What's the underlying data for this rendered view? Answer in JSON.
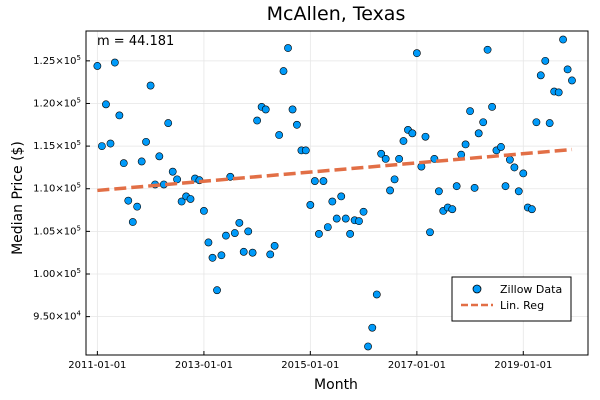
{
  "chart_data": {
    "type": "scatter",
    "title": "McAllen, Texas",
    "xlabel": "Month",
    "ylabel": "Median Price ($)",
    "annotation": "m = 44.181",
    "grid": true,
    "legend_position": "bottom-right",
    "xlim": [
      "2010-10-15",
      "2020-03-20"
    ],
    "ylim": [
      90500,
      128500
    ],
    "x_ticks": [
      {
        "date": "2011-01-01",
        "label": "2011-01-01"
      },
      {
        "date": "2013-01-01",
        "label": "2013-01-01"
      },
      {
        "date": "2015-01-01",
        "label": "2015-01-01"
      },
      {
        "date": "2017-01-01",
        "label": "2017-01-01"
      },
      {
        "date": "2019-01-01",
        "label": "2019-01-01"
      }
    ],
    "y_ticks": [
      {
        "value": 95000,
        "mant": "9.50",
        "exp": "4"
      },
      {
        "value": 100000,
        "mant": "1.00",
        "exp": "5"
      },
      {
        "value": 105000,
        "mant": "1.05",
        "exp": "5"
      },
      {
        "value": 110000,
        "mant": "1.10",
        "exp": "5"
      },
      {
        "value": 115000,
        "mant": "1.15",
        "exp": "5"
      },
      {
        "value": 120000,
        "mant": "1.20",
        "exp": "5"
      },
      {
        "value": 125000,
        "mant": "1.25",
        "exp": "5"
      }
    ],
    "series": [
      {
        "name": "Zillow Data",
        "kind": "scatter",
        "color": "#009af9",
        "points": [
          [
            "2011-01-01",
            124400
          ],
          [
            "2011-02-01",
            115000
          ],
          [
            "2011-03-01",
            119900
          ],
          [
            "2011-04-01",
            115300
          ],
          [
            "2011-05-01",
            124800
          ],
          [
            "2011-06-01",
            118600
          ],
          [
            "2011-07-01",
            113000
          ],
          [
            "2011-08-01",
            108600
          ],
          [
            "2011-09-01",
            106100
          ],
          [
            "2011-10-01",
            107900
          ],
          [
            "2011-11-01",
            113200
          ],
          [
            "2011-12-01",
            115500
          ],
          [
            "2012-01-01",
            122100
          ],
          [
            "2012-02-01",
            110500
          ],
          [
            "2012-03-01",
            113800
          ],
          [
            "2012-04-01",
            110500
          ],
          [
            "2012-05-01",
            117700
          ],
          [
            "2012-06-01",
            112000
          ],
          [
            "2012-07-01",
            111100
          ],
          [
            "2012-08-01",
            108500
          ],
          [
            "2012-09-01",
            109100
          ],
          [
            "2012-10-01",
            108800
          ],
          [
            "2012-11-01",
            111200
          ],
          [
            "2012-12-01",
            111000
          ],
          [
            "2013-01-01",
            107400
          ],
          [
            "2013-02-01",
            103700
          ],
          [
            "2013-03-01",
            101900
          ],
          [
            "2013-04-01",
            98100
          ],
          [
            "2013-05-01",
            102200
          ],
          [
            "2013-06-01",
            104500
          ],
          [
            "2013-07-01",
            111400
          ],
          [
            "2013-08-01",
            104800
          ],
          [
            "2013-09-01",
            106000
          ],
          [
            "2013-10-01",
            102600
          ],
          [
            "2013-11-01",
            105000
          ],
          [
            "2013-12-01",
            102500
          ],
          [
            "2014-01-01",
            118000
          ],
          [
            "2014-02-01",
            119600
          ],
          [
            "2014-03-01",
            119300
          ],
          [
            "2014-04-01",
            102300
          ],
          [
            "2014-05-01",
            103300
          ],
          [
            "2014-06-01",
            116300
          ],
          [
            "2014-07-01",
            123800
          ],
          [
            "2014-08-01",
            126500
          ],
          [
            "2014-09-01",
            119300
          ],
          [
            "2014-10-01",
            117500
          ],
          [
            "2014-11-01",
            114500
          ],
          [
            "2014-12-01",
            114500
          ],
          [
            "2015-01-01",
            108100
          ],
          [
            "2015-02-01",
            110900
          ],
          [
            "2015-03-01",
            104700
          ],
          [
            "2015-04-01",
            110900
          ],
          [
            "2015-05-01",
            105500
          ],
          [
            "2015-06-01",
            108500
          ],
          [
            "2015-07-01",
            106500
          ],
          [
            "2015-08-01",
            109100
          ],
          [
            "2015-09-01",
            106500
          ],
          [
            "2015-10-01",
            104700
          ],
          [
            "2015-11-01",
            106300
          ],
          [
            "2015-12-01",
            106200
          ],
          [
            "2016-01-01",
            107300
          ],
          [
            "2016-02-01",
            91500
          ],
          [
            "2016-03-01",
            93700
          ],
          [
            "2016-04-01",
            97600
          ],
          [
            "2016-05-01",
            114100
          ],
          [
            "2016-06-01",
            113500
          ],
          [
            "2016-07-01",
            109800
          ],
          [
            "2016-08-01",
            111100
          ],
          [
            "2016-09-01",
            113500
          ],
          [
            "2016-10-01",
            115600
          ],
          [
            "2016-11-01",
            116900
          ],
          [
            "2016-12-01",
            116500
          ],
          [
            "2017-01-01",
            125900
          ],
          [
            "2017-02-01",
            112600
          ],
          [
            "2017-03-01",
            116100
          ],
          [
            "2017-04-01",
            104900
          ],
          [
            "2017-05-01",
            113500
          ],
          [
            "2017-06-01",
            109700
          ],
          [
            "2017-07-01",
            107400
          ],
          [
            "2017-08-01",
            107800
          ],
          [
            "2017-09-01",
            107600
          ],
          [
            "2017-10-01",
            110300
          ],
          [
            "2017-11-01",
            114000
          ],
          [
            "2017-12-01",
            115200
          ],
          [
            "2018-01-01",
            119100
          ],
          [
            "2018-02-01",
            110100
          ],
          [
            "2018-03-01",
            116500
          ],
          [
            "2018-04-01",
            117800
          ],
          [
            "2018-05-01",
            126300
          ],
          [
            "2018-06-01",
            119600
          ],
          [
            "2018-07-01",
            114500
          ],
          [
            "2018-08-01",
            114900
          ],
          [
            "2018-09-01",
            110300
          ],
          [
            "2018-10-01",
            113400
          ],
          [
            "2018-11-01",
            112500
          ],
          [
            "2018-12-01",
            109700
          ],
          [
            "2019-01-01",
            111800
          ],
          [
            "2019-02-01",
            107800
          ],
          [
            "2019-03-01",
            107600
          ],
          [
            "2019-04-01",
            117800
          ],
          [
            "2019-05-01",
            123300
          ],
          [
            "2019-06-01",
            125000
          ],
          [
            "2019-07-01",
            117700
          ],
          [
            "2019-08-01",
            121400
          ],
          [
            "2019-09-01",
            121300
          ],
          [
            "2019-10-01",
            127500
          ],
          [
            "2019-11-01",
            124000
          ],
          [
            "2019-12-01",
            122700
          ]
        ]
      },
      {
        "name": "Lin. Reg",
        "kind": "line",
        "color": "#e26f46",
        "points": [
          [
            "2011-01-01",
            109800
          ],
          [
            "2019-12-01",
            114600
          ]
        ]
      }
    ]
  }
}
